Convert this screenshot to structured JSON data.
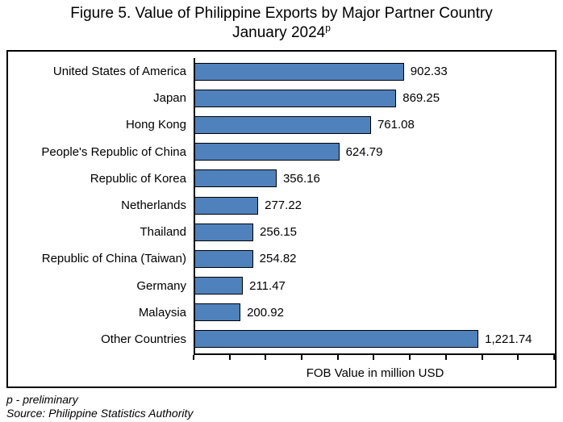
{
  "title": {
    "line1": "Figure 5. Value of Philippine Exports by Major Partner Country",
    "line2": "January 2024",
    "superscript": "p"
  },
  "chart_data": {
    "type": "bar",
    "orientation": "horizontal",
    "title": "Figure 5. Value of Philippine Exports by Major Partner Country January 2024p",
    "categories": [
      "United States of America",
      "Japan",
      "Hong Kong",
      "People's Republic of China",
      "Republic of Korea",
      "Netherlands",
      "Thailand",
      "Republic of China (Taiwan)",
      "Germany",
      "Malaysia",
      "Other Countries"
    ],
    "values": [
      902.33,
      869.25,
      761.08,
      624.79,
      356.16,
      277.22,
      256.15,
      254.82,
      211.47,
      200.92,
      1221.74
    ],
    "value_labels": [
      "902.33",
      "869.25",
      "761.08",
      "624.79",
      "356.16",
      "277.22",
      "256.15",
      "254.82",
      "211.47",
      "200.92",
      "1,221.74"
    ],
    "xlabel": "FOB Value in million USD",
    "ylabel": "",
    "xlim": [
      0,
      1550
    ],
    "tick_count": 11,
    "tick_labels_shown": false,
    "grid": false,
    "legend": false,
    "bar_color": "#4F81BD",
    "bar_border_color": "#000000",
    "axis_color": "#000000"
  },
  "footer": {
    "note": "p - preliminary",
    "source": "Source: Philippine Statistics Authority"
  }
}
